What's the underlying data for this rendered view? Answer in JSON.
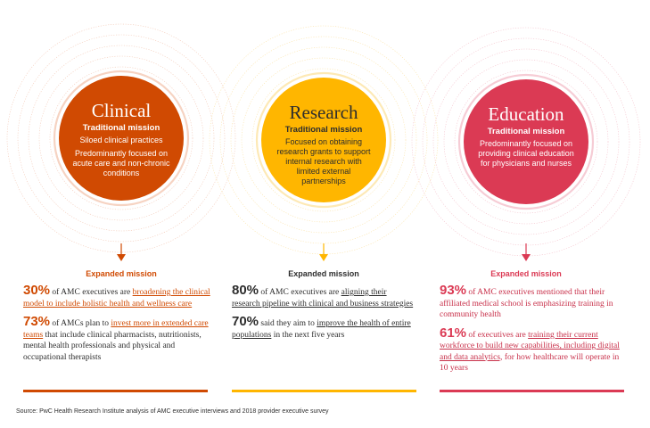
{
  "colors": {
    "clinical": "#d04a02",
    "research": "#ffb600",
    "education": "#db3a54",
    "text": "#2d2d2d"
  },
  "missions": [
    {
      "title": "Clinical",
      "subtitle": "Traditional mission",
      "desc": [
        "Siloed clinical practices",
        "Predominantly focused on acute care and non-chronic conditions"
      ],
      "expanded_label": "Expanded mission",
      "stats": [
        {
          "pct": "30%",
          "pre": " of AMC executives are ",
          "link": "broadening the clinical model to include holistic health and wellness care",
          "post": ""
        },
        {
          "pct": "73%",
          "pre": " of AMCs plan to ",
          "link": "invest more in extended care teams",
          "post": " that include clinical pharmacists, nutritionists, mental health professionals and physical and occupational therapists"
        }
      ]
    },
    {
      "title": "Research",
      "subtitle": "Traditional mission",
      "desc": [
        "Focused on obtaining research grants to support internal research with limited external partnerships"
      ],
      "expanded_label": "Expanded mission",
      "stats": [
        {
          "pct": "80%",
          "pre": " of AMC executives are ",
          "link": "aligning their research pipeline with clinical and business strategies",
          "post": ""
        },
        {
          "pct": "70%",
          "pre": " said they aim to ",
          "link": "improve the health of entire populations",
          "post": " in the next five years"
        }
      ]
    },
    {
      "title": "Education",
      "subtitle": "Traditional mission",
      "desc": [
        "Predominantly focused on providing clinical education for physicians and nurses"
      ],
      "expanded_label": "Expanded mission",
      "stats": [
        {
          "pct": "93%",
          "pre": " of AMC executives mentioned that their affiliated medical school is emphasizing training in community health",
          "link": "",
          "post": ""
        },
        {
          "pct": "61%",
          "pre": " of executives are ",
          "link": "training their current workforce to build new capabilities, including digital and data analytics,",
          "post": " for how healthcare will operate in 10 years"
        }
      ]
    }
  ],
  "source": "Source: PwC Health Research Institute analysis of AMC executive interviews and 2018 provider executive survey"
}
